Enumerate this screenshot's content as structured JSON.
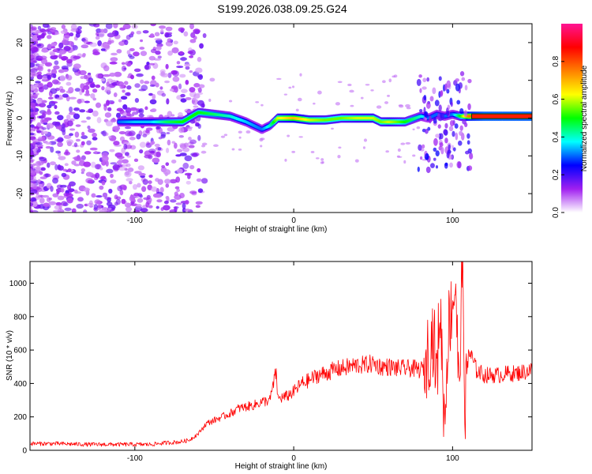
{
  "title": "S199.2026.038.09.25.G24",
  "chart_data": [
    {
      "type": "heatmap",
      "title": "S199.2026.038.09.25.G24",
      "xlabel": "Height of straight line (km)",
      "ylabel": "Frequency (Hz)",
      "xlim": [
        -166,
        150
      ],
      "ylim": [
        -25,
        25
      ],
      "xticks": [
        -100,
        0,
        100
      ],
      "yticks": [
        -20,
        -10,
        0,
        10,
        20
      ],
      "colorbar": {
        "label": "Normalized spectral amplitude",
        "range": [
          0,
          1
        ],
        "ticks": [
          0.0,
          0.2,
          0.4,
          0.6,
          0.8
        ],
        "tick_labels": [
          "0.0",
          "0.2",
          "0.4",
          "0.6",
          "0.8"
        ],
        "colormap": [
          "#ffffff",
          "#a020f0",
          "#0000ff",
          "#00ffff",
          "#00ff00",
          "#ffff00",
          "#ff8000",
          "#ff0000",
          "#ff1493"
        ]
      },
      "ridge": {
        "height_km": [
          -110,
          -100,
          -90,
          -80,
          -70,
          -60,
          -50,
          -40,
          -30,
          -20,
          -15,
          -10,
          0,
          10,
          20,
          30,
          40,
          50,
          55,
          60,
          70,
          80,
          85,
          90,
          95,
          100,
          105,
          110,
          120,
          130,
          140,
          150
        ],
        "frequency_hz": [
          -1,
          -1,
          -1,
          -1,
          -1,
          1.5,
          1,
          0.5,
          -1,
          -3,
          -2,
          0,
          0,
          -0.5,
          -0.5,
          0,
          0,
          0,
          -1,
          -1,
          -1,
          0.5,
          0,
          1,
          0.5,
          1,
          0.5,
          0.5,
          0.5,
          0.5,
          0.5,
          0.5
        ],
        "amplitude": [
          0.3,
          0.35,
          0.35,
          0.45,
          0.5,
          0.5,
          0.45,
          0.4,
          0.35,
          0.3,
          0.4,
          0.6,
          0.7,
          0.6,
          0.55,
          0.55,
          0.6,
          0.6,
          0.55,
          0.6,
          0.5,
          0.4,
          0.3,
          0.3,
          0.3,
          0.3,
          0.5,
          0.75,
          0.85,
          0.85,
          0.85,
          0.85
        ]
      }
    },
    {
      "type": "line",
      "xlabel": "Height of straight line (km)",
      "ylabel": "SNR (10 * v/v)",
      "xlim": [
        -166,
        150
      ],
      "ylim": [
        0,
        1130
      ],
      "xticks": [
        -100,
        0,
        100
      ],
      "yticks": [
        0,
        200,
        400,
        600,
        800,
        1000
      ],
      "color": "#ff0000",
      "series": [
        {
          "x": [
            -166,
            -150,
            -130,
            -110,
            -90,
            -80,
            -72,
            -66,
            -60,
            -55,
            -50,
            -45,
            -40,
            -35,
            -30,
            -25,
            -20,
            -15,
            -11,
            -10,
            -5,
            0,
            5,
            10,
            15,
            20,
            25,
            30,
            35,
            40,
            45,
            50,
            55,
            60,
            65,
            70,
            75,
            80,
            82,
            85,
            88,
            90,
            92,
            95,
            97,
            100,
            102,
            104,
            106,
            108,
            110,
            115,
            120,
            125,
            130,
            135,
            140,
            145,
            150
          ],
          "y": [
            40,
            40,
            35,
            35,
            35,
            45,
            50,
            60,
            100,
            160,
            180,
            200,
            220,
            250,
            260,
            270,
            290,
            300,
            470,
            310,
            320,
            350,
            400,
            420,
            450,
            460,
            480,
            490,
            500,
            510,
            510,
            520,
            500,
            500,
            490,
            490,
            490,
            480,
            500,
            600,
            700,
            400,
            900,
            150,
            700,
            900,
            1000,
            300,
            1100,
            250,
            600,
            480,
            450,
            450,
            450,
            460,
            460,
            470,
            480
          ]
        }
      ]
    }
  ]
}
